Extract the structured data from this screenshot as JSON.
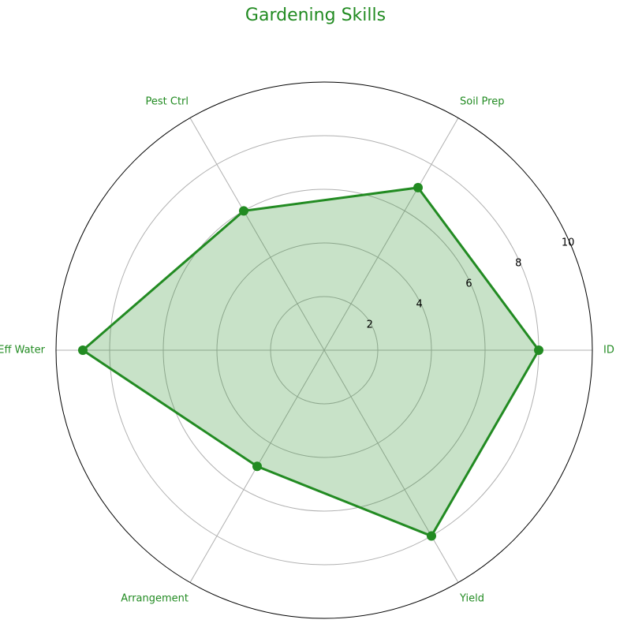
{
  "chart_data": {
    "type": "radar",
    "title": "Gardening Skills",
    "categories": [
      "ID",
      "Soil Prep",
      "Pest Ctrl",
      "Eff Water",
      "Arrangement",
      "Yield"
    ],
    "series": [
      {
        "values": [
          8,
          7,
          6,
          9,
          5,
          8
        ]
      }
    ],
    "rlim": [
      0,
      10
    ],
    "r_ticks": [
      2,
      4,
      6,
      8,
      10
    ],
    "grid": true,
    "colors": {
      "series_line": "#228b22",
      "series_fill": "#228b22",
      "category_labels": "#228b22",
      "title": "#228b22",
      "grid": "#b0b0b0",
      "outer_frame": "#000000",
      "tick_labels": "#000000"
    }
  }
}
